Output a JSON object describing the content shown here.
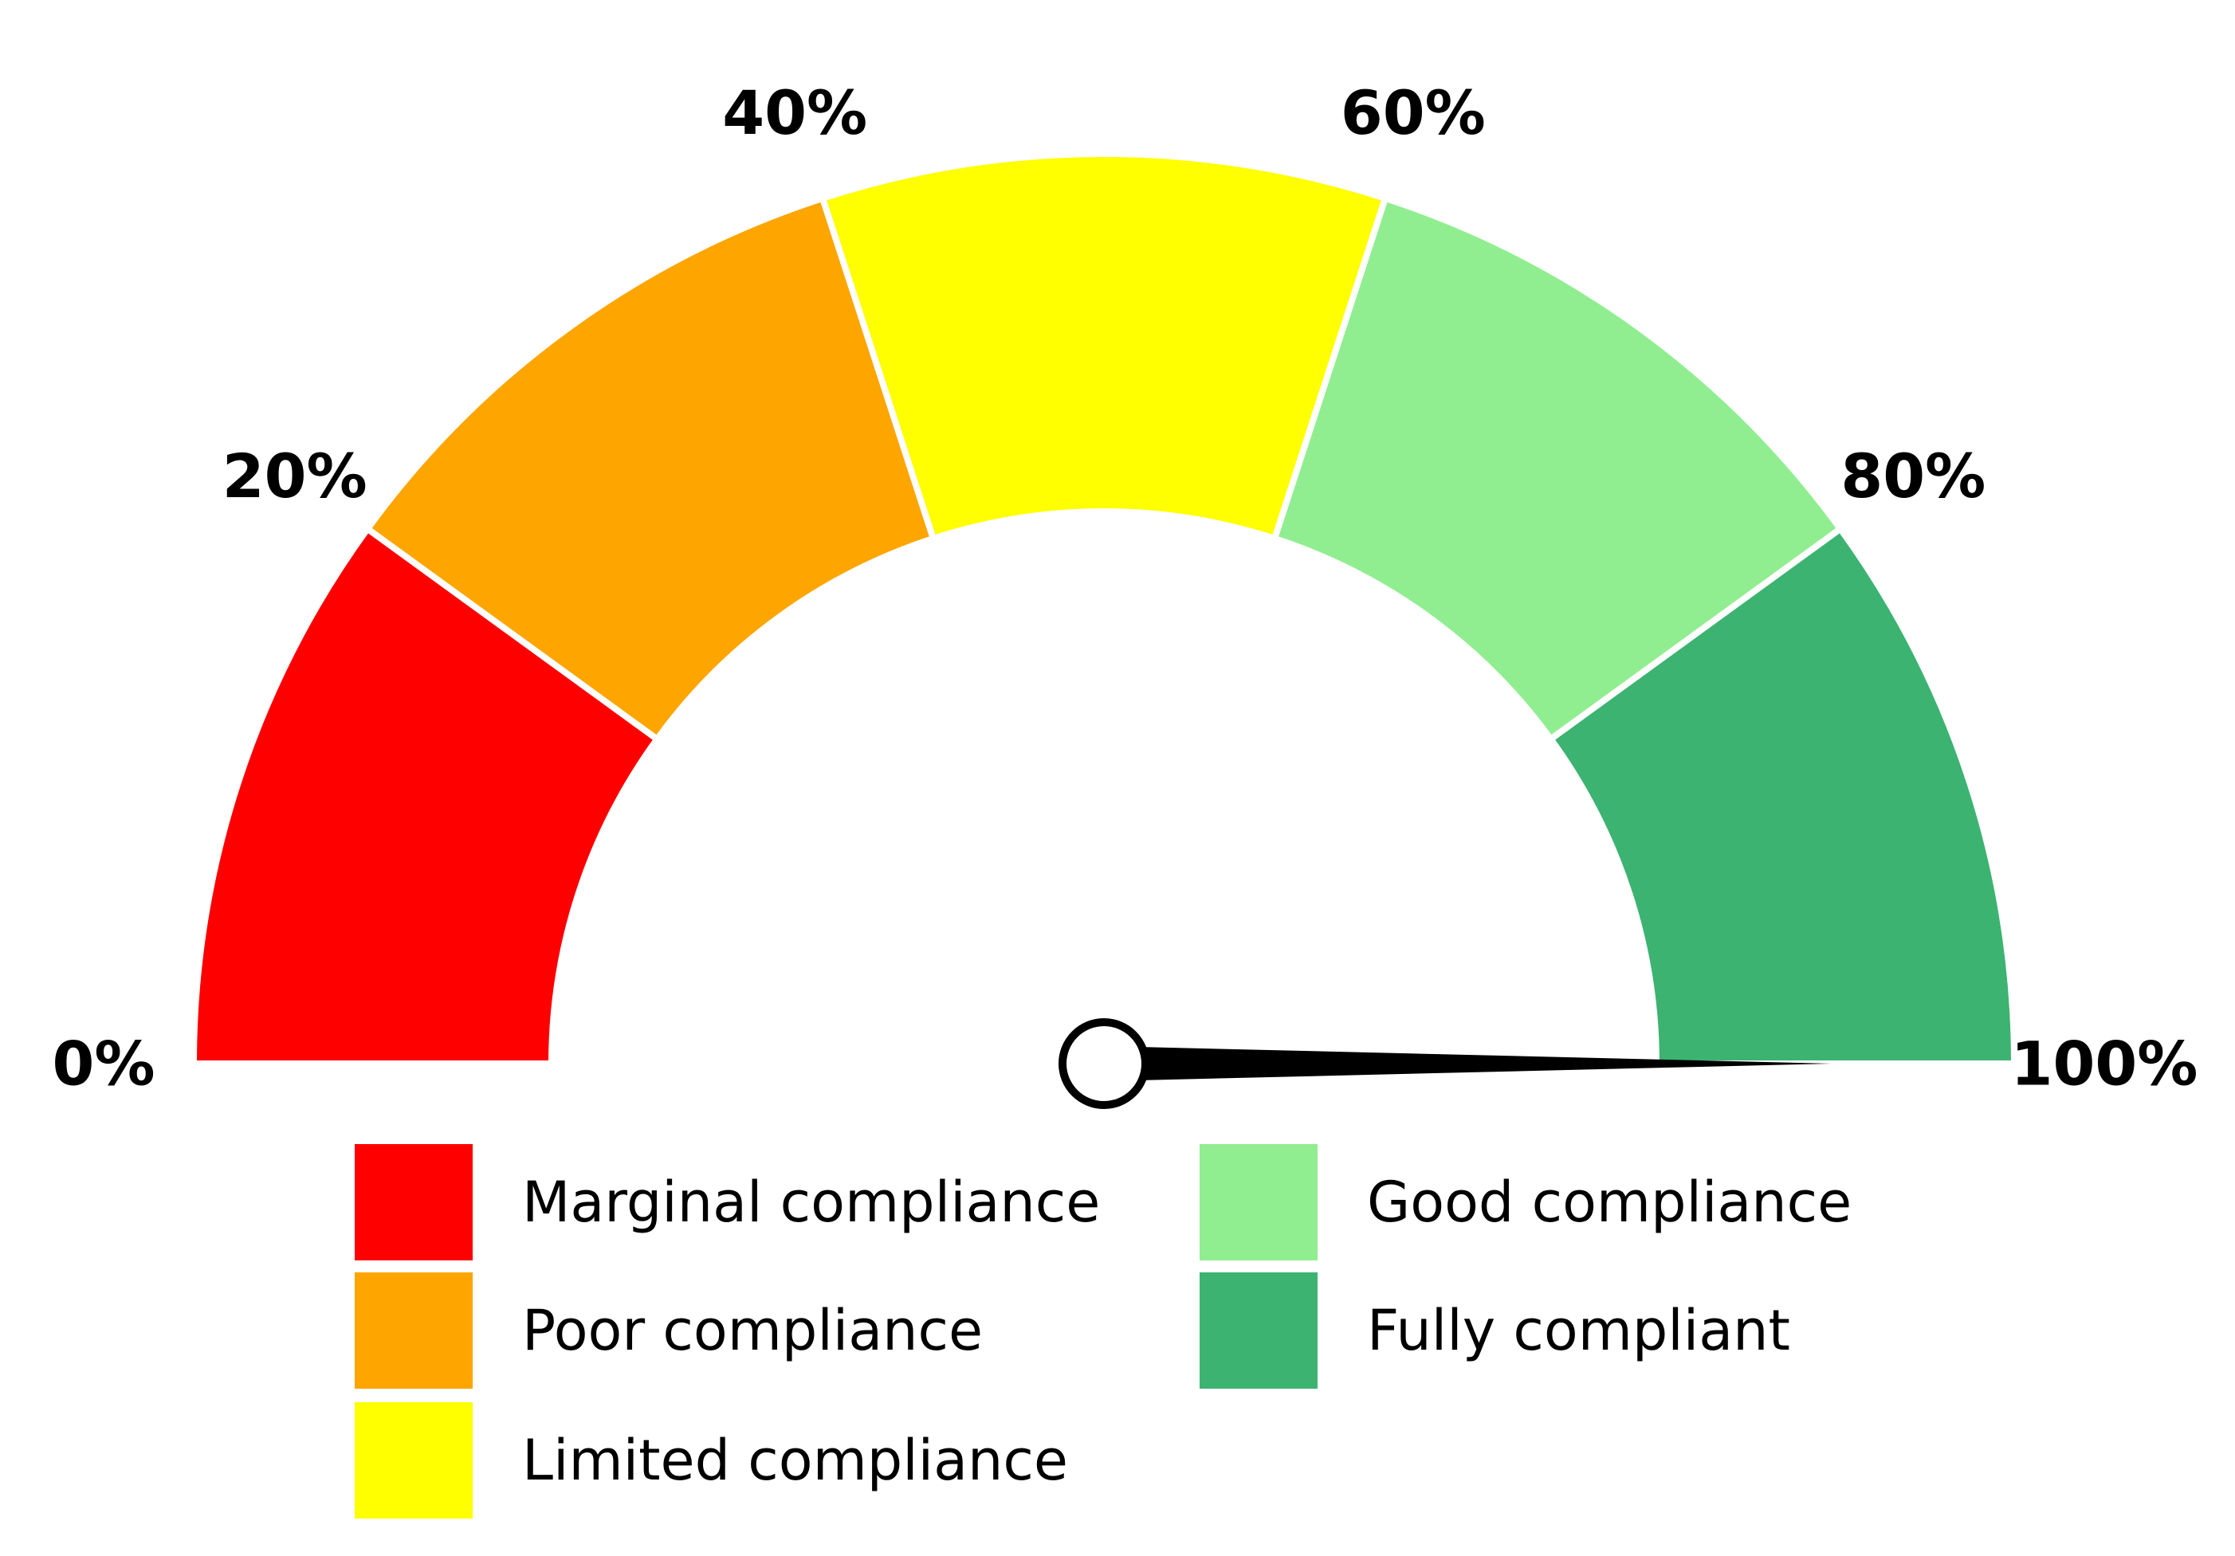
{
  "chart_data": {
    "type": "gauge",
    "range": [
      0,
      100
    ],
    "ticks": [
      {
        "value": 0,
        "label": "0%"
      },
      {
        "value": 20,
        "label": "20%"
      },
      {
        "value": 40,
        "label": "40%"
      },
      {
        "value": 60,
        "label": "60%"
      },
      {
        "value": 80,
        "label": "80%"
      },
      {
        "value": 100,
        "label": "100%"
      }
    ],
    "bands": [
      {
        "name": "Marginal compliance",
        "from": 0,
        "to": 20,
        "color": "#ff0000"
      },
      {
        "name": "Poor compliance",
        "from": 20,
        "to": 40,
        "color": "#ffa500"
      },
      {
        "name": "Limited compliance",
        "from": 40,
        "to": 60,
        "color": "#ffff00"
      },
      {
        "name": "Good compliance",
        "from": 60,
        "to": 80,
        "color": "#90ee90"
      },
      {
        "name": "Fully compliant",
        "from": 80,
        "to": 100,
        "color": "#3cb371"
      }
    ],
    "needle_value": 100,
    "legend": {
      "position": "bottom",
      "columns": 2,
      "entries": [
        {
          "label": "Marginal compliance",
          "color": "#ff0000"
        },
        {
          "label": "Poor compliance",
          "color": "#ffa500"
        },
        {
          "label": "Limited compliance",
          "color": "#ffff00"
        },
        {
          "label": "Good compliance",
          "color": "#90ee90"
        },
        {
          "label": "Fully compliant",
          "color": "#3cb371"
        }
      ]
    }
  }
}
